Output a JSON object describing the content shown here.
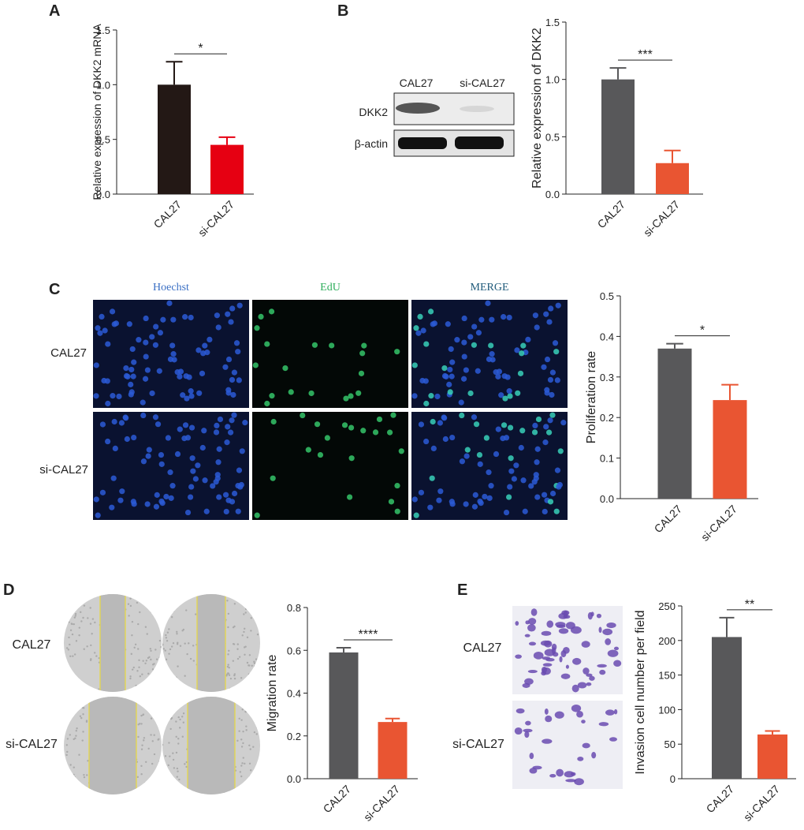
{
  "panel_labels": [
    "A",
    "B",
    "C",
    "D",
    "E"
  ],
  "blot": {
    "lanes": [
      "CAL27",
      "si-CAL27"
    ],
    "rows": [
      "DKK2",
      "β-actin"
    ]
  },
  "proliferation_images": {
    "channels": [
      "Hoechst",
      "EdU",
      "MERGE"
    ],
    "rows": [
      "CAL27",
      "si-CAL27"
    ]
  },
  "migration_images": {
    "rows": [
      "CAL27",
      "si-CAL27"
    ]
  },
  "invasion_images": {
    "rows": [
      "CAL27",
      "si-CAL27"
    ]
  },
  "chart_data": [
    {
      "type": "bar",
      "ylabel": "Relative expression of DKK2 mRNA",
      "annotation": "*",
      "categories": [
        "CAL27",
        "si-CAL27"
      ],
      "values": [
        1.0,
        0.45
      ],
      "errors": [
        0.21,
        0.07
      ],
      "colors": [
        "#231815",
        "#e60012"
      ],
      "ylim": [
        0,
        1.5
      ],
      "yticks": [
        {
          "value": 0,
          "label": "0.0"
        },
        0.5,
        {
          "value": 1,
          "label": "1.0"
        },
        1.5
      ]
    },
    {
      "type": "bar",
      "ylabel": "Relative expression of DKK2",
      "annotation": "***",
      "categories": [
        "CAL27",
        "si-CAL27"
      ],
      "values": [
        1.0,
        0.27
      ],
      "errors": [
        0.1,
        0.11
      ],
      "colors": [
        "#58585a",
        "#e95532"
      ],
      "ylim": [
        0,
        1.5
      ],
      "yticks": [
        {
          "value": 0,
          "label": "0.0"
        },
        0.5,
        {
          "value": 1,
          "label": "1.0"
        },
        1.5
      ]
    },
    {
      "type": "bar",
      "ylabel": "Proliferation rate",
      "annotation": "*",
      "categories": [
        "CAL27",
        "si-CAL27"
      ],
      "values": [
        0.37,
        0.243
      ],
      "errors": [
        0.012,
        0.038
      ],
      "colors": [
        "#58585a",
        "#e95532"
      ],
      "ylim": [
        0,
        0.5
      ],
      "yticks": [
        {
          "value": 0,
          "label": "0.0"
        },
        0.1,
        0.2,
        0.3,
        0.4,
        0.5
      ]
    },
    {
      "type": "bar",
      "ylabel": "Migration rate",
      "annotation": "****",
      "categories": [
        "CAL27",
        "si-CAL27"
      ],
      "values": [
        0.59,
        0.265
      ],
      "errors": [
        0.022,
        0.016
      ],
      "colors": [
        "#58585a",
        "#e95532"
      ],
      "ylim": [
        0,
        0.8
      ],
      "yticks": [
        {
          "value": 0,
          "label": "0.0"
        },
        0.2,
        0.4,
        0.6,
        0.8
      ]
    },
    {
      "type": "bar",
      "ylabel": "Invasion cell number per field",
      "annotation": "**",
      "categories": [
        "CAL27",
        "si-CAL27"
      ],
      "values": [
        205,
        64
      ],
      "errors": [
        28,
        5
      ],
      "colors": [
        "#58585a",
        "#e95532"
      ],
      "ylim": [
        0,
        250
      ],
      "yticks": [
        0,
        50,
        100,
        150,
        200,
        250
      ]
    }
  ]
}
